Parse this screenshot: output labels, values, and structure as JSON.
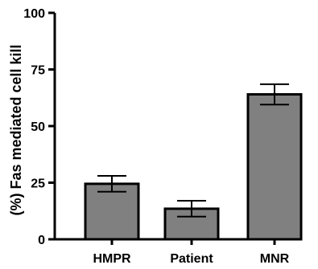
{
  "chart_data": {
    "type": "bar",
    "categories": [
      "HMPR",
      "Patient",
      "MNR"
    ],
    "values": [
      24.5,
      13.5,
      64
    ],
    "errors": [
      3.5,
      3.5,
      4.5
    ],
    "ylabel": "(%) Fas mediated cell kill",
    "xlabel": "",
    "ylim": [
      0,
      100
    ],
    "yticks": [
      0,
      25,
      50,
      75,
      100
    ],
    "grid": false,
    "colors": {
      "bar_fill": "#808080",
      "bar_stroke": "#000000",
      "axis": "#000000"
    }
  }
}
